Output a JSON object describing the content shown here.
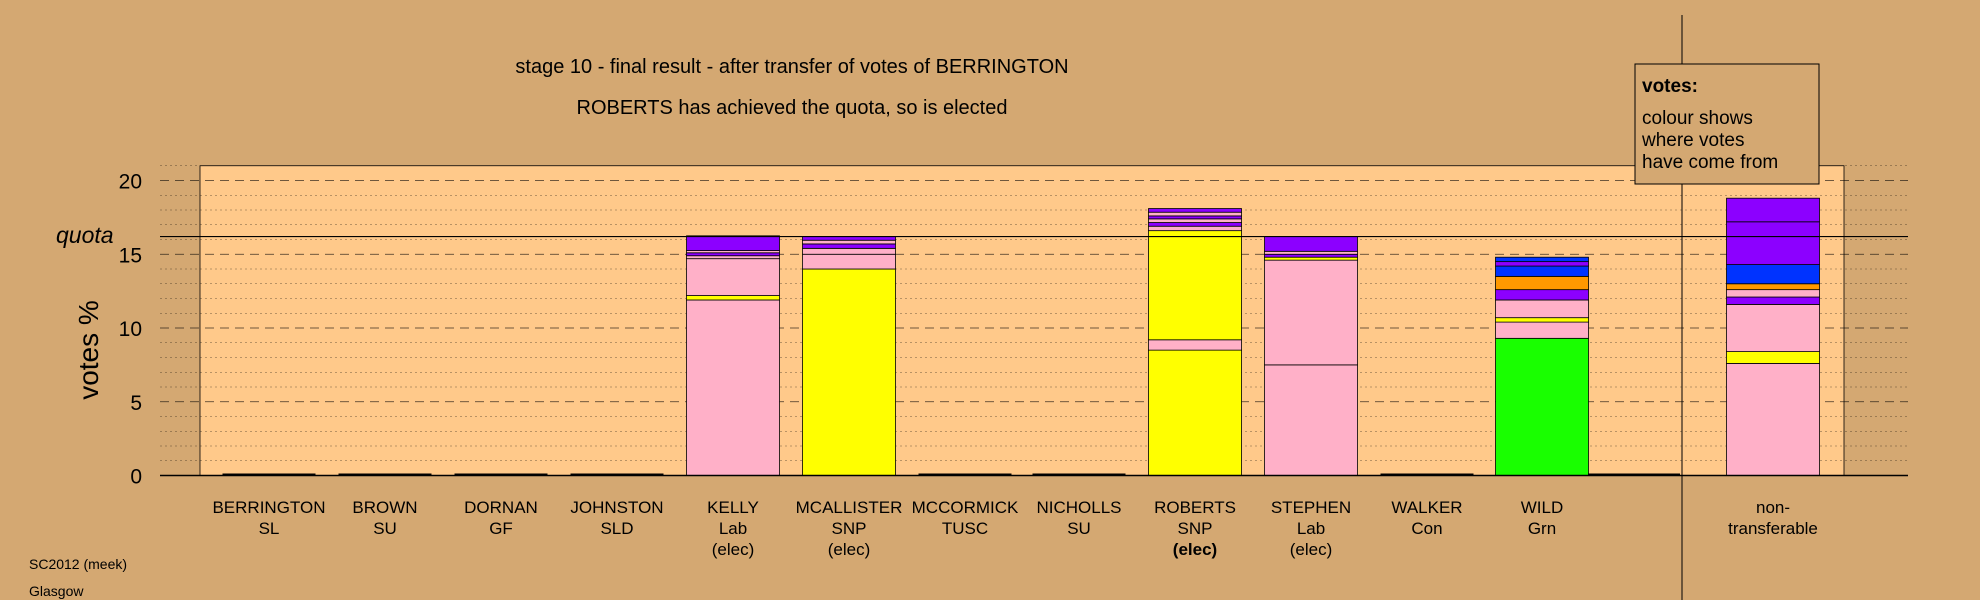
{
  "chart_data": {
    "type": "bar",
    "stacked": true,
    "title": "stage 10 - final result - after transfer of votes of BERRINGTON",
    "subtitle": "ROBERTS has achieved the quota, so is elected",
    "ylabel": "votes %",
    "ylim": [
      0,
      21
    ],
    "yticks": [
      0,
      5,
      10,
      15,
      20
    ],
    "grid": true,
    "quota": {
      "label": "quota",
      "value": 16.2
    },
    "legend": {
      "title": "votes:",
      "lines": [
        "colour shows",
        "where votes",
        "have come from"
      ],
      "position": "top-right"
    },
    "footer": [
      "SC2012 (meek)",
      "Glasgow"
    ],
    "colors": {
      "background": "#d4a872",
      "plot_area": "#ffc98a",
      "Lab": "#ffb0c8",
      "SNP": "#ffff00",
      "Grn": "#19ff00",
      "purple": "#8c00ff",
      "blue": "#0033ff",
      "orange": "#ff9900"
    },
    "candidates": [
      {
        "name": "BERRINGTON",
        "party": "SL",
        "status": "",
        "segments": []
      },
      {
        "name": "BROWN",
        "party": "SU",
        "status": "",
        "segments": []
      },
      {
        "name": "DORNAN",
        "party": "GF",
        "status": "",
        "segments": []
      },
      {
        "name": "JOHNSTON",
        "party": "SLD",
        "status": "",
        "segments": []
      },
      {
        "name": "KELLY",
        "party": "Lab",
        "status": "(elec)",
        "segments": [
          {
            "value": 11.9,
            "color": "#ffb0c8"
          },
          {
            "value": 0.3,
            "color": "#ffff00"
          },
          {
            "value": 2.5,
            "color": "#ffb0c8"
          },
          {
            "value": 0.2,
            "color": "#ffb0c8"
          },
          {
            "value": 0.2,
            "color": "#8c00ff"
          },
          {
            "value": 0.15,
            "color": "#ffb0c8"
          },
          {
            "value": 1.0,
            "color": "#8c00ff"
          }
        ]
      },
      {
        "name": "MCALLISTER",
        "party": "SNP",
        "status": "(elec)",
        "segments": [
          {
            "value": 14.0,
            "color": "#ffff00"
          },
          {
            "value": 1.0,
            "color": "#ffb0c8"
          },
          {
            "value": 0.4,
            "color": "#ffb0c8"
          },
          {
            "value": 0.3,
            "color": "#8c00ff"
          },
          {
            "value": 0.25,
            "color": "#ffb0c8"
          },
          {
            "value": 0.25,
            "color": "#8c00ff"
          }
        ]
      },
      {
        "name": "MCCORMICK",
        "party": "TUSC",
        "status": "",
        "segments": []
      },
      {
        "name": "NICHOLLS",
        "party": "SU",
        "status": "",
        "segments": []
      },
      {
        "name": "ROBERTS",
        "party": "SNP",
        "status": "(elec)",
        "bold_status": true,
        "segments": [
          {
            "value": 8.5,
            "color": "#ffff00"
          },
          {
            "value": 0.7,
            "color": "#ffb0c8"
          },
          {
            "value": 7.4,
            "color": "#ffff00"
          },
          {
            "value": 0.3,
            "color": "#ffb0c8"
          },
          {
            "value": 0.25,
            "color": "#8c00ff"
          },
          {
            "value": 0.25,
            "color": "#ffb0c8"
          },
          {
            "value": 0.2,
            "color": "#8c00ff"
          },
          {
            "value": 0.25,
            "color": "#ffb0c8"
          },
          {
            "value": 0.25,
            "color": "#8c00ff"
          }
        ]
      },
      {
        "name": "STEPHEN",
        "party": "Lab",
        "status": "(elec)",
        "segments": [
          {
            "value": 7.5,
            "color": "#ffb0c8"
          },
          {
            "value": 7.1,
            "color": "#ffb0c8"
          },
          {
            "value": 0.2,
            "color": "#ffff00"
          },
          {
            "value": 0.2,
            "color": "#8c00ff"
          },
          {
            "value": 0.2,
            "color": "#ffb0c8"
          },
          {
            "value": 1.0,
            "color": "#8c00ff"
          }
        ]
      },
      {
        "name": "WALKER",
        "party": "Con",
        "status": "",
        "segments": []
      },
      {
        "name": "WILD",
        "party": "Grn",
        "status": "",
        "segments": [
          {
            "value": 9.3,
            "color": "#19ff00"
          },
          {
            "value": 1.1,
            "color": "#ffb0c8"
          },
          {
            "value": 0.3,
            "color": "#ffff00"
          },
          {
            "value": 1.2,
            "color": "#ffb0c8"
          },
          {
            "value": 0.7,
            "color": "#8c00ff"
          },
          {
            "value": 0.9,
            "color": "#ff9900"
          },
          {
            "value": 0.7,
            "color": "#0033ff"
          },
          {
            "value": 0.3,
            "color": "#8c00ff"
          },
          {
            "value": 0.3,
            "color": "#0033ff"
          }
        ]
      }
    ],
    "nontransferable": {
      "label_lines": [
        "non-",
        "transferable"
      ],
      "segments": [
        {
          "value": 7.6,
          "color": "#ffb0c8"
        },
        {
          "value": 0.8,
          "color": "#ffff00"
        },
        {
          "value": 3.2,
          "color": "#ffb0c8"
        },
        {
          "value": 0.5,
          "color": "#8c00ff"
        },
        {
          "value": 0.5,
          "color": "#ffb0c8"
        },
        {
          "value": 0.4,
          "color": "#ff9900"
        },
        {
          "value": 1.3,
          "color": "#0033ff"
        },
        {
          "value": 2.9,
          "color": "#8c00ff"
        },
        {
          "value": 1.6,
          "color": "#8c00ff"
        }
      ]
    }
  }
}
